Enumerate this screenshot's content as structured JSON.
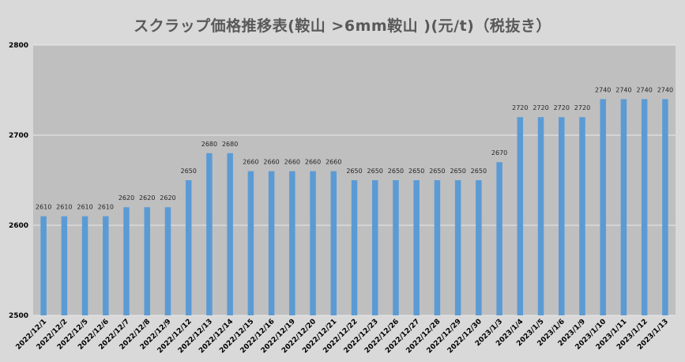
{
  "chart_data": {
    "type": "bar",
    "title": "スクラップ価格推移表(鞍山 >6mm鞍山 )(元/t)（税抜き）",
    "xlabel": "",
    "ylabel": "",
    "ylim": [
      2500,
      2800
    ],
    "yticks": [
      2500,
      2600,
      2700,
      2800
    ],
    "grid": true,
    "legend": "none",
    "categories": [
      "2022/12/1",
      "2022/12/2",
      "2022/12/5",
      "2022/12/6",
      "2022/12/7",
      "2022/12/8",
      "2022/12/9",
      "2022/12/12",
      "2022/12/13",
      "2022/12/14",
      "2022/12/15",
      "2022/12/16",
      "2022/12/19",
      "2022/12/20",
      "2022/12/21",
      "2022/12/22",
      "2022/12/23",
      "2022/12/26",
      "2022/12/27",
      "2022/12/28",
      "2022/12/29",
      "2022/12/30",
      "2023/1/3",
      "2023/1/4",
      "2023/1/5",
      "2023/1/6",
      "2023/1/9",
      "2023/1/10",
      "2023/1/11",
      "2023/1/12",
      "2023/1/13"
    ],
    "values": [
      2610,
      2610,
      2610,
      2610,
      2620,
      2620,
      2620,
      2650,
      2680,
      2680,
      2660,
      2660,
      2660,
      2660,
      2660,
      2650,
      2650,
      2650,
      2650,
      2650,
      2650,
      2650,
      2670,
      2720,
      2720,
      2720,
      2720,
      2740,
      2740,
      2740,
      2740
    ],
    "bar_color": "#5b9bd5",
    "plot_background": "#bfbfbf",
    "gridline_color": "#e8e8e8"
  }
}
